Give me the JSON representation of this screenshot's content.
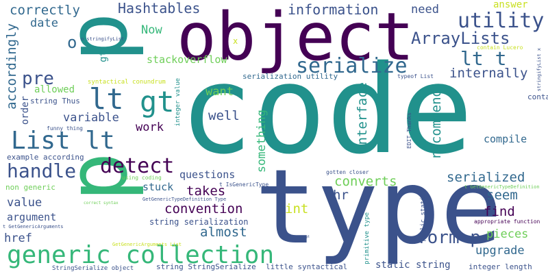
{
  "palette": {
    "purple": "#440154",
    "indigo": "#3b528b",
    "blue": "#31688e",
    "teal": "#21918c",
    "green": "#35b779",
    "lime": "#6ece58",
    "yellow": "#fde725",
    "gold": "#c8e020"
  },
  "words": {
    "code": "code",
    "type": "type",
    "object": "object",
    "p_big": "p",
    "p_big2": "p",
    "generic_collection": "generic collection",
    "list_lt": "List lt",
    "lt": "lt",
    "gt": "gt",
    "serialize": "serialize",
    "detect": "detect",
    "handle": "handle",
    "utility": "utility",
    "arraylists": "ArrayLists",
    "hashtables": "Hashtables",
    "information": "information",
    "correctly": "correctly",
    "accordingly": "accordingly",
    "date": "date",
    "now": "Now",
    "need": "need",
    "answer": "answer",
    "lt_t": "lt t",
    "internally": "internally",
    "recommend": "recommend",
    "interface": "interface",
    "something": "something",
    "converts": "converts",
    "serialized": "serialized",
    "seem": "seem",
    "find": "find",
    "compile": "compile",
    "upgrade": "upgrade",
    "pieces": "pieces",
    "form_p": "form p",
    "well": "well",
    "want": "want",
    "work": "work",
    "variable": "variable",
    "allowed": "allowed",
    "order": "order",
    "stackoverflow": "stackoverflow",
    "pre": "pre",
    "o": "o",
    "gt_small": "gt",
    "takes": "takes",
    "convention": "convention",
    "almost": "almost",
    "int": "int",
    "hr": "hr",
    "questions": "questions",
    "stuck": "stuck",
    "value": "value",
    "argument": "argument",
    "href": "href",
    "string_serialization": "string serialization",
    "serialization_utility": "serialization utility",
    "syntactical_conundrum": "syntactical conundrum",
    "string_thus": "string Thus",
    "example_according": "example according",
    "non_generic": "non generic",
    "funny_thing": "funny thing",
    "using_coding": "using coding",
    "integer_value": "integer value",
    "typeof_list": "typeof List",
    "contain": "contain",
    "contain_lucero": "contain Lucero",
    "stringifylist_x": "stringifyList x",
    "o_stringifylist": "o stringifyList",
    "x": "x",
    "edit_thanks": "EDIT Thanks",
    "public_static": "public static",
    "primitive_type": "primitive type",
    "static_string": "static string",
    "integer_length": "integer length",
    "little_syntactical": "little syntactical",
    "string_stringserialize": "string StringSerialize",
    "stringserialize_object": "StringSerialize object",
    "getgenericarguments_list": "GetGenericArguments List",
    "t_getgenericarguments": "t GetGenericArguments",
    "getgenerictypedefinition_type": "GetGenericTypeDefinition Type",
    "t_getgenerictypedefinition": "t GetGenericTypeDefinition",
    "t_isgenerictype": "t IsGenericType",
    "appropriate_function": "appropriate function",
    "gotten_closer": "gotten closer",
    "correct_syntax": "correct syntax",
    "gt_tiny": "gt"
  }
}
